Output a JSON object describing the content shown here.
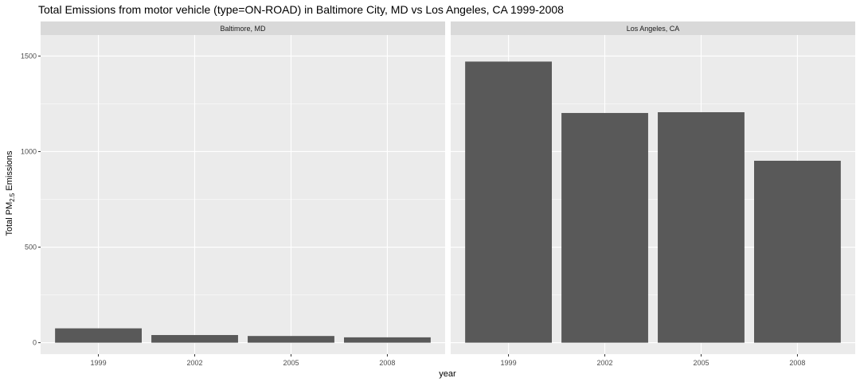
{
  "chart_data": {
    "type": "bar",
    "title": "Total Emissions from motor vehicle (type=ON-ROAD) in Baltimore City, MD vs Los Angeles, CA 1999-2008",
    "xlabel": "year",
    "ylabel": {
      "prefix": "Total PM",
      "subscript": "2.5",
      "suffix": " Emissions"
    },
    "categories": [
      "1999",
      "2002",
      "2005",
      "2008"
    ],
    "ylim": [
      -60,
      1610
    ],
    "yticks": [
      0,
      500,
      1000,
      1500
    ],
    "grid": true,
    "panel_background": "#ebebeb",
    "strip_background": "#d9d9d9",
    "bar_color": "#595959",
    "panels": [
      {
        "name": "Baltimore, MD",
        "values": [
          75,
          40,
          35,
          28
        ]
      },
      {
        "name": "Los Angeles, CA",
        "values": [
          1471,
          1202,
          1206,
          952
        ]
      }
    ]
  }
}
